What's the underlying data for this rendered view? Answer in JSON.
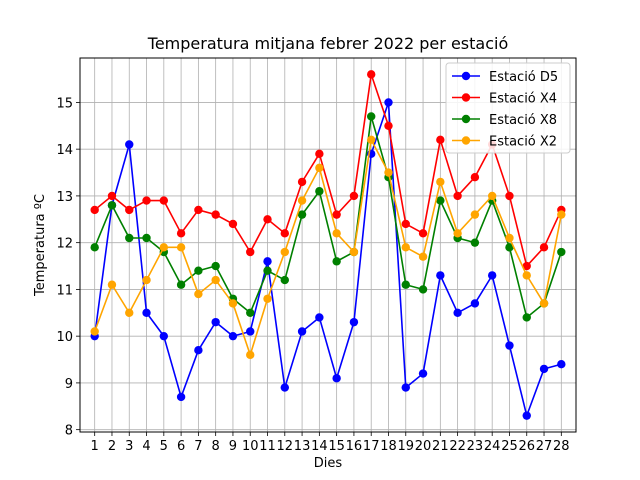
{
  "chart_data": {
    "type": "line",
    "title": "Temperatura mitjana febrer 2022 per estació",
    "xlabel": "Dies",
    "ylabel": "Temperatura ºC",
    "x": [
      1,
      2,
      3,
      4,
      5,
      6,
      7,
      8,
      9,
      10,
      11,
      12,
      13,
      14,
      15,
      16,
      17,
      18,
      19,
      20,
      21,
      22,
      23,
      24,
      25,
      26,
      27,
      28
    ],
    "ylim": [
      7.95,
      15.95
    ],
    "yticks": [
      8,
      9,
      10,
      11,
      12,
      13,
      14,
      15
    ],
    "grid": true,
    "legend_position": "top-right",
    "series": [
      {
        "name": "Estació D5",
        "color": "#0000ff",
        "values": [
          10.0,
          12.8,
          14.1,
          10.5,
          10.0,
          8.7,
          9.7,
          10.3,
          10.0,
          10.1,
          11.6,
          8.9,
          10.1,
          10.4,
          9.1,
          10.3,
          13.9,
          15.0,
          8.9,
          9.2,
          11.3,
          10.5,
          10.7,
          11.3,
          9.8,
          8.3,
          9.3,
          9.4
        ]
      },
      {
        "name": "Estació X4",
        "color": "#ff0000",
        "values": [
          12.7,
          13.0,
          12.7,
          12.9,
          12.9,
          12.2,
          12.7,
          12.6,
          12.4,
          11.8,
          12.5,
          12.2,
          13.3,
          13.9,
          12.6,
          13.0,
          15.6,
          14.5,
          12.4,
          12.2,
          14.2,
          13.0,
          13.4,
          14.1,
          13.0,
          11.5,
          11.9,
          12.7
        ]
      },
      {
        "name": "Estació X8",
        "color": "#008000",
        "values": [
          11.9,
          12.8,
          12.1,
          12.1,
          11.8,
          11.1,
          11.4,
          11.5,
          10.8,
          10.5,
          11.4,
          11.2,
          12.6,
          13.1,
          11.6,
          11.8,
          14.7,
          13.4,
          11.1,
          11.0,
          12.9,
          12.1,
          12.0,
          12.9,
          11.9,
          10.4,
          10.7,
          11.8
        ]
      },
      {
        "name": "Estació X2",
        "color": "#ffa500",
        "values": [
          10.1,
          11.1,
          10.5,
          11.2,
          11.9,
          11.9,
          10.9,
          11.2,
          10.7,
          9.6,
          10.8,
          11.8,
          12.9,
          13.6,
          12.2,
          11.8,
          14.2,
          13.5,
          11.9,
          11.7,
          13.3,
          12.2,
          12.6,
          13.0,
          12.1,
          11.3,
          10.7,
          12.6
        ]
      }
    ]
  }
}
